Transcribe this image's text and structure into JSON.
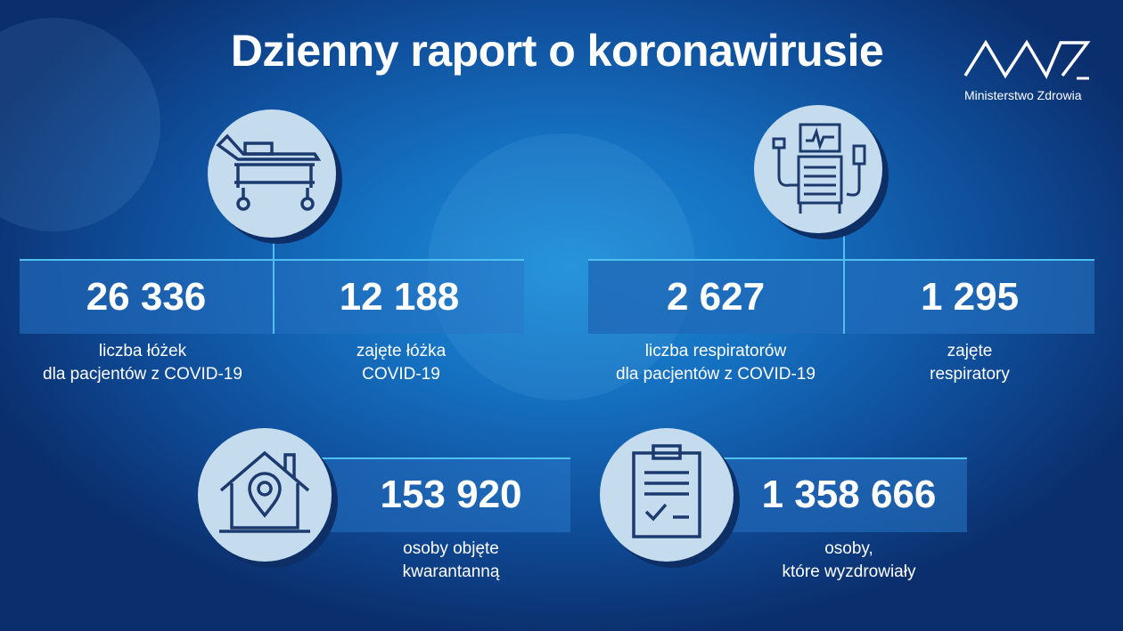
{
  "title": "Dzienny raport o koronawirusie",
  "logo": {
    "text": "Ministerstwo Zdrowia"
  },
  "stats": {
    "beds_total": {
      "value": "26 336",
      "label1": "liczba łóżek",
      "label2": "dla pacjentów z COVID-19",
      "icon": "hospital-bed-icon"
    },
    "beds_occupied": {
      "value": "12 188",
      "label1": "zajęte łóżka",
      "label2": "COVID-19"
    },
    "ventilators_total": {
      "value": "2 627",
      "label1": "liczba respiratorów",
      "label2": "dla pacjentów z COVID-19",
      "icon": "ventilator-icon"
    },
    "ventilators_occupied": {
      "value": "1 295",
      "label1": "zajęte",
      "label2": "respiratory"
    },
    "quarantine": {
      "value": "153 920",
      "label1": "osoby objęte",
      "label2": "kwarantanną",
      "icon": "home-location-icon"
    },
    "recovered": {
      "value": "1 358 666",
      "label1": "osoby,",
      "label2": "które wyzdrowiały",
      "icon": "clipboard-check-icon"
    }
  },
  "colors": {
    "accent": "#4fc0f0",
    "circle": "#c5dcef",
    "icon_stroke": "#1d3a6e"
  }
}
